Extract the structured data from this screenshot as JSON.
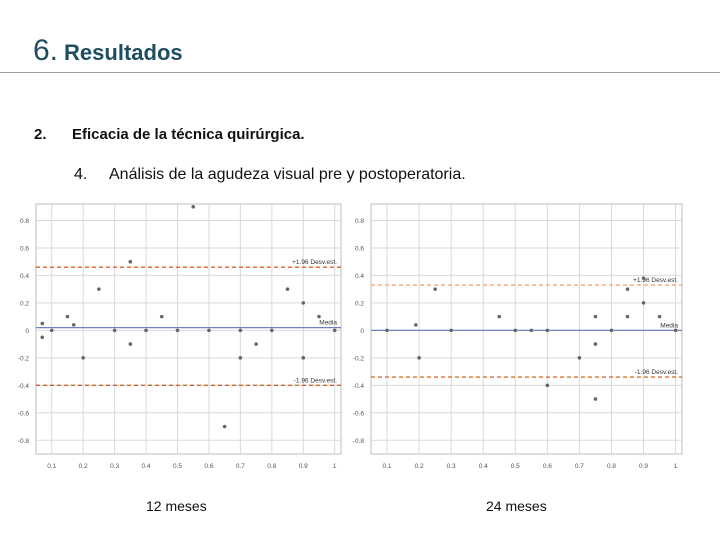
{
  "slide": {
    "number": "6.",
    "title": "Resultados",
    "section_number": "2.",
    "section_title": "Eficacia de la técnica quirúrgica.",
    "subsection_number": "4.",
    "subsection_title": "Análisis de la agudeza visual pre y postoperatoria."
  },
  "colors": {
    "upper_limit_left": "#e0602a",
    "lower_limit_left": "#c9642e",
    "upper_limit_right": "#f2a77e",
    "lower_limit_right": "#d9702e",
    "mean_line": "#6f80c4",
    "points": "#666666",
    "grid": "#d9d9d9",
    "frame": "#bdbdbd"
  },
  "chart_data": [
    {
      "type": "scatter",
      "caption": "12 meses",
      "xlim": [
        0.05,
        1.02
      ],
      "ylim": [
        -0.9,
        0.92
      ],
      "xticks": [
        "0.1",
        "0.2",
        "0.3",
        "0.4",
        "0.5",
        "0.6",
        "0.7",
        "0.8",
        "0.9",
        "1"
      ],
      "yticks": [
        "0.8",
        "0.6",
        "0.4",
        "0.2",
        "0",
        "-0.2",
        "-0.4",
        "-0.6",
        "-0.8"
      ],
      "lines": [
        {
          "label": "+1.96 Desv.est.",
          "y": 0.46,
          "style": "dashed"
        },
        {
          "label": "Media",
          "y": 0.02,
          "style": "solid"
        },
        {
          "label": "-1.96 Desv.est.",
          "y": -0.4,
          "style": "dashed"
        }
      ],
      "x": [
        0.07,
        0.07,
        0.1,
        0.15,
        0.17,
        0.2,
        0.25,
        0.3,
        0.35,
        0.35,
        0.4,
        0.45,
        0.5,
        0.55,
        0.6,
        0.65,
        0.7,
        0.7,
        0.75,
        0.8,
        0.85,
        0.9,
        0.9,
        0.95,
        1.0
      ],
      "y": [
        0.05,
        -0.05,
        0.0,
        0.1,
        0.04,
        -0.2,
        0.3,
        0.0,
        0.5,
        -0.1,
        0.0,
        0.1,
        0.0,
        0.9,
        0.0,
        -0.7,
        0.0,
        -0.2,
        -0.1,
        0.0,
        0.3,
        0.2,
        -0.2,
        0.1,
        0.0
      ]
    },
    {
      "type": "scatter",
      "caption": "24 meses",
      "xlim": [
        0.05,
        1.02
      ],
      "ylim": [
        -0.9,
        0.92
      ],
      "xticks": [
        "0.1",
        "0.2",
        "0.3",
        "0.4",
        "0.5",
        "0.6",
        "0.7",
        "0.8",
        "0.9",
        "1"
      ],
      "yticks": [
        "0.8",
        "0.6",
        "0.4",
        "0.2",
        "0",
        "-0.2",
        "-0.4",
        "-0.6",
        "-0.8"
      ],
      "lines": [
        {
          "label": "+1.96 Desv.est.",
          "y": 0.33,
          "style": "dashed"
        },
        {
          "label": "Media",
          "y": 0.0,
          "style": "solid"
        },
        {
          "label": "-1.96 Desv.est.",
          "y": -0.34,
          "style": "dashed"
        }
      ],
      "x": [
        0.1,
        0.19,
        0.2,
        0.25,
        0.3,
        0.45,
        0.5,
        0.55,
        0.6,
        0.6,
        0.7,
        0.75,
        0.75,
        0.75,
        0.8,
        0.85,
        0.85,
        0.9,
        0.9,
        0.95,
        1.0
      ],
      "y": [
        0.0,
        0.04,
        -0.2,
        0.3,
        0.0,
        0.1,
        0.0,
        0.0,
        0.0,
        -0.4,
        -0.2,
        0.1,
        -0.1,
        -0.5,
        0.0,
        0.3,
        0.1,
        0.2,
        0.38,
        0.1,
        0.0
      ]
    }
  ]
}
